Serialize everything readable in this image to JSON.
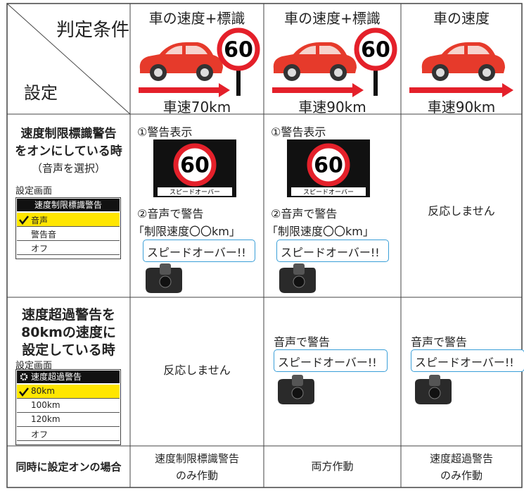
{
  "header": {
    "condition_label": "判定条件",
    "setting_label": "設定",
    "columns": [
      {
        "title": "車の速度+標識",
        "sign": "60",
        "speed": "車速70km"
      },
      {
        "title": "車の速度+標識",
        "sign": "60",
        "speed": "車速90km"
      },
      {
        "title": "車の速度",
        "speed": "車速90km"
      }
    ]
  },
  "rows": [
    {
      "label": [
        "速度制限標識警告",
        "をオンにしている時"
      ],
      "note": "（音声を選択）",
      "screen_label": "設定画面",
      "menu": {
        "title": "速度制限標識警告",
        "items": [
          "音声",
          "警告音",
          "オフ"
        ]
      },
      "cells": [
        {
          "step1": "①警告表示",
          "display_number": "60",
          "display_caption": "スピードオーバー",
          "step2": "②音声で警告",
          "voice": "「制限速度〇〇km」",
          "bubble": "スピードオーバー!!"
        },
        {
          "step1": "①警告表示",
          "display_number": "60",
          "display_caption": "スピードオーバー",
          "step2": "②音声で警告",
          "voice": "「制限速度〇〇km」",
          "bubble": "スピードオーバー!!"
        },
        {
          "text": "反応しません"
        }
      ]
    },
    {
      "label": [
        "速度超過警告を",
        "80kmの速度に",
        "設定している時"
      ],
      "screen_label": "設定画面",
      "menu": {
        "title": "速度超過警告",
        "items": [
          "80km",
          "100km",
          "120km",
          "オフ"
        ]
      },
      "cells": [
        {
          "text": "反応しません"
        },
        {
          "text": "音声で警告",
          "bubble": "スピードオーバー!!"
        },
        {
          "text": "音声で警告",
          "bubble": "スピードオーバー!!"
        }
      ]
    },
    {
      "label": [
        "同時に設定オンの場合"
      ],
      "cells": [
        {
          "lines": [
            "速度制限標識警告",
            "のみ作動"
          ]
        },
        {
          "lines": [
            "両方作動"
          ]
        },
        {
          "lines": [
            "速度超過警告",
            "のみ作動"
          ]
        }
      ]
    }
  ]
}
